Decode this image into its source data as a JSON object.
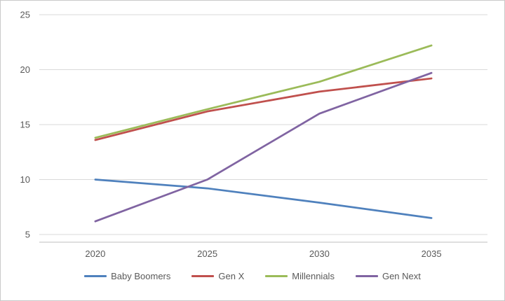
{
  "chart_data": {
    "type": "line",
    "title": "",
    "categories": [
      "2020",
      "2025",
      "2030",
      "2035"
    ],
    "series": [
      {
        "name": "Baby Boomers",
        "color": "#4F81BD",
        "values": [
          10,
          9.2,
          7.9,
          6.5
        ]
      },
      {
        "name": "Gen X",
        "color": "#C0504D",
        "values": [
          13.6,
          16.2,
          18.0,
          19.2
        ]
      },
      {
        "name": "Millennials",
        "color": "#9BBB59",
        "values": [
          13.8,
          16.4,
          18.9,
          22.2
        ]
      },
      {
        "name": "Gen Next",
        "color": "#8064A2",
        "values": [
          6.2,
          10.0,
          16.0,
          19.7
        ]
      }
    ],
    "xlabel": "",
    "ylabel": "",
    "yticks": [
      5,
      10,
      15,
      20,
      25
    ],
    "ylim": [
      4.3,
      25
    ],
    "grid": true,
    "legend_position": "bottom",
    "grid_color": "#D9D9D9",
    "axis_color": "#BFBFBF",
    "text_color": "#595959"
  }
}
